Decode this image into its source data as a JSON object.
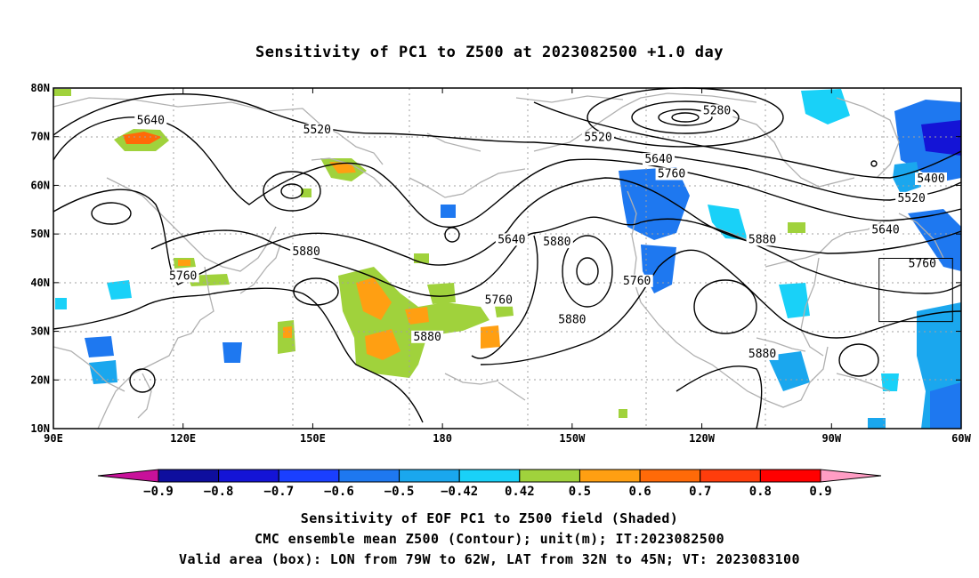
{
  "title": "Sensitivity of PC1 to Z500 at 2023082500 +1.0 day",
  "map": {
    "lon_range": [
      90,
      300
    ],
    "lat_range": [
      10,
      80
    ],
    "lat_ticks": [
      {
        "value": 10,
        "label": "10N"
      },
      {
        "value": 20,
        "label": "20N"
      },
      {
        "value": 30,
        "label": "30N"
      },
      {
        "value": 40,
        "label": "40N"
      },
      {
        "value": 50,
        "label": "50N"
      },
      {
        "value": 60,
        "label": "60N"
      },
      {
        "value": 70,
        "label": "70N"
      },
      {
        "value": 80,
        "label": "80N"
      }
    ],
    "lon_ticks": [
      {
        "value": 90,
        "label": "90E"
      },
      {
        "value": 120,
        "label": "120E"
      },
      {
        "value": 150,
        "label": "150E"
      },
      {
        "value": 180,
        "label": "180"
      },
      {
        "value": 210,
        "label": "150W"
      },
      {
        "value": 240,
        "label": "120W"
      },
      {
        "value": 270,
        "label": "90W"
      },
      {
        "value": 300,
        "label": "60W"
      }
    ],
    "valid_box": {
      "lon_min": 281,
      "lon_max": 298,
      "lat_min": 32,
      "lat_max": 45
    },
    "contour_labels": [
      {
        "text": "5280",
        "lon": 243.5,
        "lat": 75
      },
      {
        "text": "5520",
        "lon": 151.0,
        "lat": 71
      },
      {
        "text": "5520",
        "lon": 216.0,
        "lat": 69.5
      },
      {
        "text": "5640",
        "lon": 112.5,
        "lat": 73
      },
      {
        "text": "5640",
        "lon": 230.0,
        "lat": 65
      },
      {
        "text": "5760",
        "lon": 233.0,
        "lat": 62
      },
      {
        "text": "5400",
        "lon": 293.0,
        "lat": 61
      },
      {
        "text": "5520",
        "lon": 288.5,
        "lat": 57
      },
      {
        "text": "5640",
        "lon": 282.5,
        "lat": 50.5
      },
      {
        "text": "5760",
        "lon": 291.0,
        "lat": 43.5
      },
      {
        "text": "5880",
        "lon": 254.0,
        "lat": 48.5
      },
      {
        "text": "5880",
        "lon": 148.5,
        "lat": 46
      },
      {
        "text": "5880",
        "lon": 206.5,
        "lat": 48
      },
      {
        "text": "5640",
        "lon": 196.0,
        "lat": 48.5
      },
      {
        "text": "5760",
        "lon": 193.0,
        "lat": 36
      },
      {
        "text": "5760",
        "lon": 225.0,
        "lat": 40
      },
      {
        "text": "5760",
        "lon": 120.0,
        "lat": 41
      },
      {
        "text": "5880",
        "lon": 210.0,
        "lat": 32
      },
      {
        "text": "5880",
        "lon": 176.5,
        "lat": 28.5
      },
      {
        "text": "5880",
        "lon": 254.0,
        "lat": 25
      }
    ]
  },
  "colorbar": {
    "labels": [
      "-0.9",
      "-0.8",
      "-0.7",
      "-0.6",
      "-0.5",
      "-0.42",
      "0.42",
      "0.5",
      "0.6",
      "0.7",
      "0.8",
      "0.9"
    ],
    "colors": {
      "low_end": "#c8119a",
      "bins": [
        "#0e0e9e",
        "#1414d6",
        "#1a3fff",
        "#1e78f0",
        "#1aa7ee",
        "#19d1f8",
        "#ffffff",
        "#a0d23c",
        "#ff9f12",
        "#ff6a08",
        "#ff3d0c",
        "#ff0000"
      ],
      "high_end": "#ff9dc4"
    }
  },
  "captions": {
    "line1": "Sensitivity of EOF PC1 to Z500 field (Shaded)",
    "line2": "CMC ensemble mean Z500 (Contour); unit(m); IT:2023082500",
    "line3": "Valid area (box): LON from 79W to 62W, LAT from 32N to 45N; VT: 2023083100"
  },
  "colors": {
    "grid": "#a0a0a0",
    "coast": "#b0b0b0",
    "contour": "#000000",
    "positive_green": "#a0d23c",
    "positive_orange": "#ff9f12",
    "negative_blue": "#1e78f0",
    "negative_cyan": "#19d1f8"
  }
}
